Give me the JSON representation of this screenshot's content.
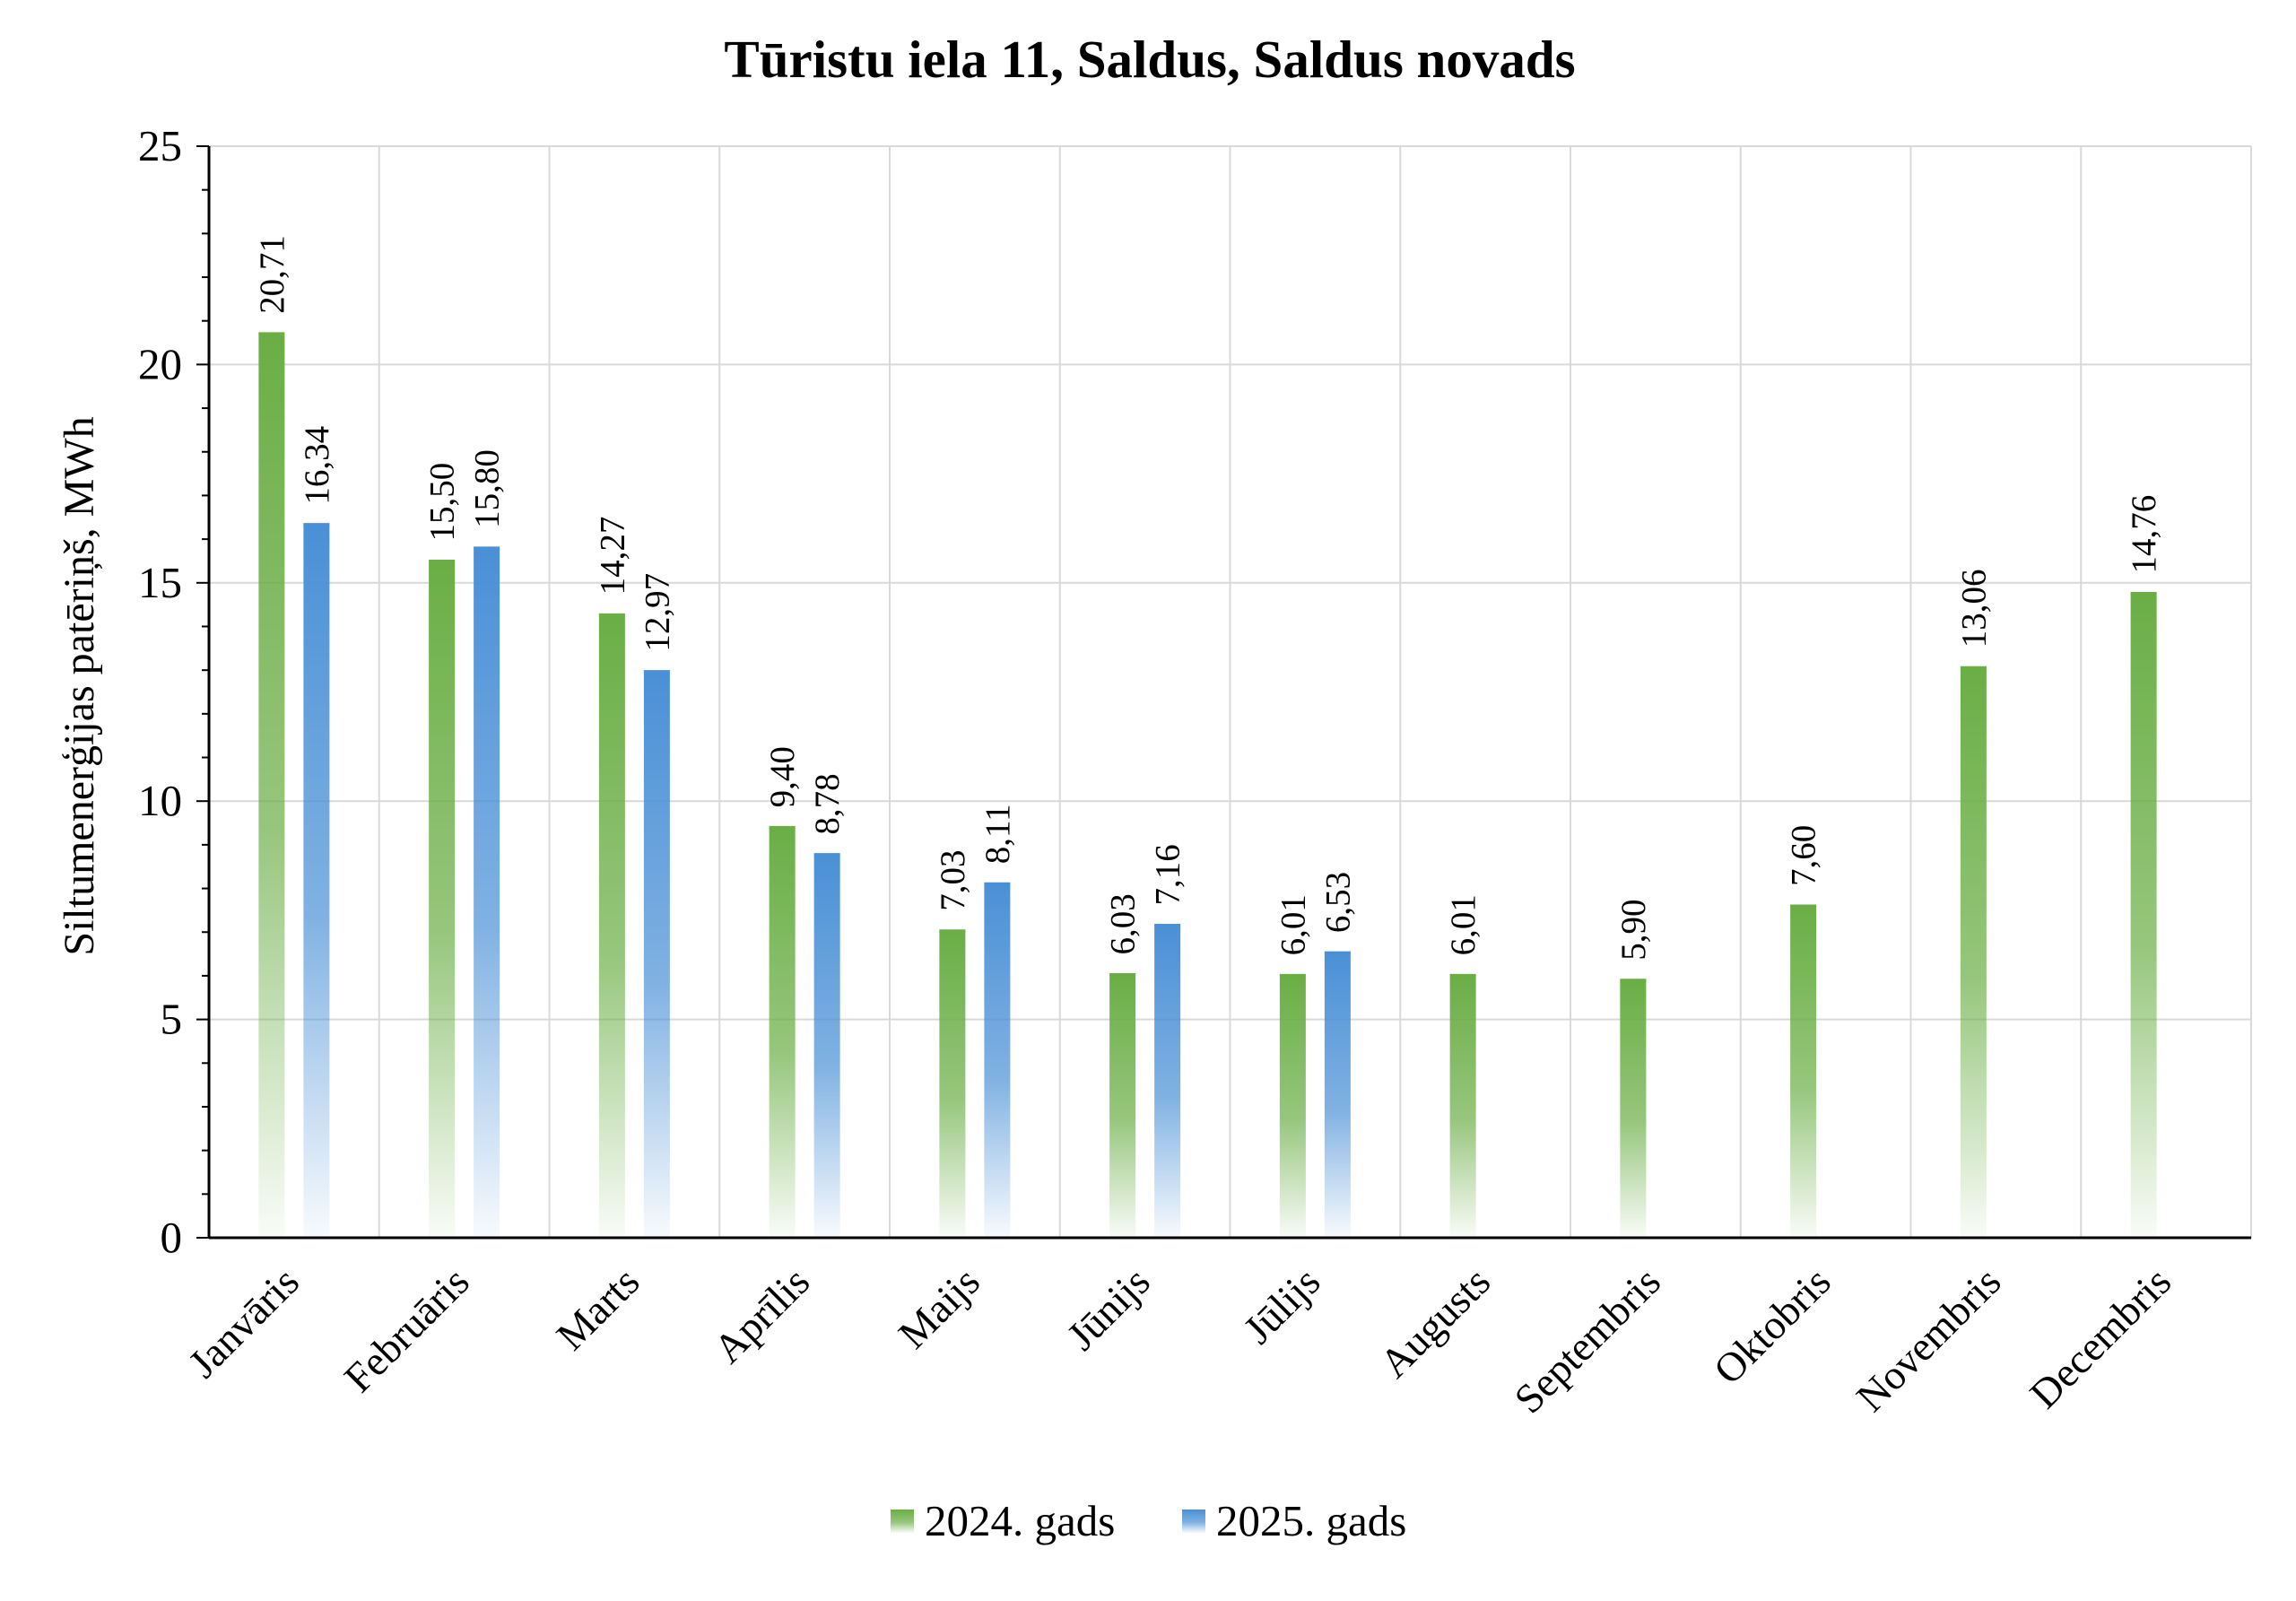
{
  "chart_data": {
    "type": "bar",
    "title": "Tūristu iela 11, Saldus, Saldus novads",
    "ylabel": "Siltumenerģijas patēriņš, MWh",
    "xlabel": "",
    "ylim": [
      0,
      25
    ],
    "yticks": [
      "0",
      "5",
      "10",
      "15",
      "20",
      "25"
    ],
    "grid": true,
    "legend_position": "bottom",
    "categories": [
      "Janvāris",
      "Februāris",
      "Marts",
      "Aprīlis",
      "Maijs",
      "Jūnijs",
      "Jūlijs",
      "Augusts",
      "Septembris",
      "Oktobris",
      "Novembris",
      "Decembris"
    ],
    "series": [
      {
        "name": "2024. gads",
        "color": "#6aae45",
        "values": [
          20.71,
          15.5,
          14.27,
          9.4,
          7.03,
          6.03,
          6.01,
          6.01,
          5.9,
          7.6,
          13.06,
          14.76
        ],
        "labels": [
          "20,71",
          "15,50",
          "14,27",
          "9,40",
          "7,03",
          "6,03",
          "6,01",
          "6,01",
          "5,90",
          "7,60",
          "13,06",
          "14,76"
        ]
      },
      {
        "name": "2025. gads",
        "color": "#4a90d6",
        "values": [
          16.34,
          15.8,
          12.97,
          8.78,
          8.11,
          7.16,
          6.53,
          null,
          null,
          null,
          null,
          null
        ],
        "labels": [
          "16,34",
          "15,80",
          "12,97",
          "8,78",
          "8,11",
          "7,16",
          "6,53",
          null,
          null,
          null,
          null,
          null
        ]
      }
    ]
  }
}
